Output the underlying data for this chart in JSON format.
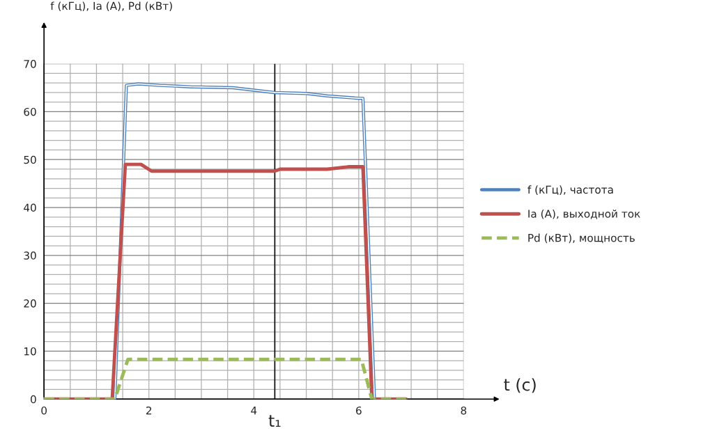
{
  "chart_data": {
    "type": "line",
    "xlabel": "t (c)",
    "ylabel": "f (кГц), Ia (A), Pd (кВт)",
    "xlim": [
      0,
      8
    ],
    "ylim": [
      0,
      70
    ],
    "xticks": [
      0,
      2,
      4,
      6,
      8
    ],
    "yticks": [
      0,
      10,
      20,
      30,
      40,
      50,
      60,
      70
    ],
    "grid": true,
    "legend": "right",
    "ref_lines": [
      {
        "axis": "x",
        "value": 4.4,
        "label": "t₁",
        "color": "#000000"
      }
    ],
    "series": [
      {
        "name": "f (кГц), частота",
        "color": "#4f81bd",
        "x": [
          0,
          1.3,
          1.35,
          1.57,
          1.8,
          2.2,
          2.8,
          3.6,
          4.0,
          4.4,
          5.0,
          5.4,
          6.0,
          6.08,
          6.3,
          6.9
        ],
        "values": [
          0,
          0,
          0,
          65.5,
          65.8,
          65.5,
          65.2,
          65,
          64.5,
          64,
          63.8,
          63.3,
          62.8,
          62.8,
          0,
          0
        ]
      },
      {
        "name": "Ia (A), выходной ток",
        "color": "#c0504d",
        "x": [
          0,
          1.3,
          1.55,
          1.85,
          2.05,
          4.4,
          4.5,
          5.4,
          5.8,
          6.08,
          6.25,
          6.9
        ],
        "values": [
          0,
          0,
          49,
          49,
          47.6,
          47.6,
          48,
          48,
          48.5,
          48.5,
          0,
          0
        ]
      },
      {
        "name": "Pd (кВт), мощность",
        "color": "#9bbb59",
        "line_style": "dashed",
        "x": [
          0,
          1.35,
          1.6,
          6.05,
          6.25,
          6.9
        ],
        "values": [
          0,
          0,
          8.3,
          8.3,
          0,
          0
        ]
      }
    ]
  }
}
